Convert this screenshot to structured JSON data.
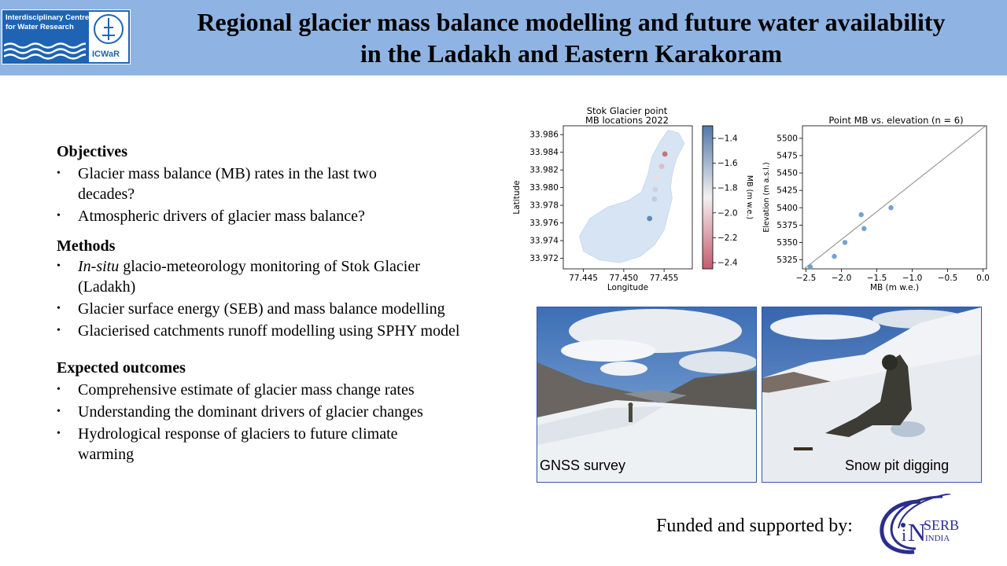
{
  "header": {
    "org_name_line1": "Interdisciplinary Centre",
    "org_name_line2": "for Water Research",
    "org_acronym": "ICWaR",
    "title_line1": "Regional glacier mass balance modelling and future water availability",
    "title_line2": "in the Ladakh and Eastern Karakoram",
    "bg_color": "#8fb4e3"
  },
  "sections": {
    "objectives": {
      "heading": "Objectives",
      "items": [
        {
          "line1": "Glacier mass balance (MB) rates in the last two",
          "line2": "decades?"
        },
        {
          "line1": "Atmospheric drivers of glacier mass balance?"
        }
      ]
    },
    "methods": {
      "heading": "Methods",
      "items": [
        {
          "italic": "In-situ",
          "rest": " glacio-meteorology monitoring of Stok Glacier",
          "line2": "(Ladakh)"
        },
        {
          "line1": "Glacier surface energy (SEB) and mass balance modelling"
        },
        {
          "line1": "Glacierised catchments runoff modelling using SPHY model"
        }
      ]
    },
    "outcomes": {
      "heading": "Expected outcomes",
      "items": [
        {
          "line1": "Comprehensive estimate of glacier mass change rates"
        },
        {
          "line1": "Understanding the dominant drivers of glacier changes"
        },
        {
          "line1": "Hydrological response of glaciers to future climate",
          "line2": "warming"
        }
      ]
    }
  },
  "chart_data": [
    {
      "type": "scatter",
      "title": "Stok Glacier point\nMB locations 2022",
      "xlabel": "Longitude",
      "ylabel": "Latitude",
      "colorbar_label": "MB (m w.e.)",
      "xlim": [
        77.4425,
        77.4585
      ],
      "ylim": [
        33.9708,
        33.987
      ],
      "x_ticks": [
        "77.445",
        "77.450",
        "77.455"
      ],
      "y_ticks": [
        "33.972",
        "33.974",
        "33.976",
        "33.978",
        "33.980",
        "33.982",
        "33.984",
        "33.986"
      ],
      "colorbar_range": [
        -2.45,
        -1.3
      ],
      "colorbar_ticks": [
        "−1.4",
        "−1.6",
        "−1.8",
        "−2.0",
        "−2.2",
        "−2.4"
      ],
      "points": [
        {
          "x": 77.4551,
          "y": 33.9838,
          "mb": -2.44
        },
        {
          "x": 77.4547,
          "y": 33.9824,
          "mb": -2.1
        },
        {
          "x": 77.4541,
          "y": 33.9811,
          "mb": -1.95
        },
        {
          "x": 77.4539,
          "y": 33.9798,
          "mb": -1.72
        },
        {
          "x": 77.4538,
          "y": 33.9787,
          "mb": -1.68
        },
        {
          "x": 77.4532,
          "y": 33.9765,
          "mb": -1.3
        }
      ]
    },
    {
      "type": "scatter",
      "title": "Point MB vs. elevation (n = 6)",
      "xlabel": "MB (m w.e.)",
      "ylabel": "Elevation (m a.s.l.)",
      "xlim": [
        -2.55,
        0.05
      ],
      "ylim": [
        5312,
        5518
      ],
      "x_ticks": [
        "−2.5",
        "−2.0",
        "−1.5",
        "−1.0",
        "−0.5",
        "0.0"
      ],
      "y_ticks": [
        "5325",
        "5350",
        "5375",
        "5400",
        "5425",
        "5450",
        "5475",
        "5500"
      ],
      "points": [
        {
          "x": -2.44,
          "y": 5315
        },
        {
          "x": -2.1,
          "y": 5330
        },
        {
          "x": -1.95,
          "y": 5350
        },
        {
          "x": -1.72,
          "y": 5390
        },
        {
          "x": -1.68,
          "y": 5370
        },
        {
          "x": -1.3,
          "y": 5400
        }
      ],
      "fit_line": [
        {
          "x": -2.55,
          "y": 5310
        },
        {
          "x": 0.05,
          "y": 5519
        }
      ]
    }
  ],
  "photos": [
    {
      "caption": "GNSS survey",
      "icon": "glacier-landscape-photo"
    },
    {
      "caption": "Snow pit digging",
      "icon": "snow-pit-photo"
    }
  ],
  "footer": {
    "funded_text": "Funded and supported by:",
    "serb_text": "SERB",
    "india_text": "INDIA"
  }
}
